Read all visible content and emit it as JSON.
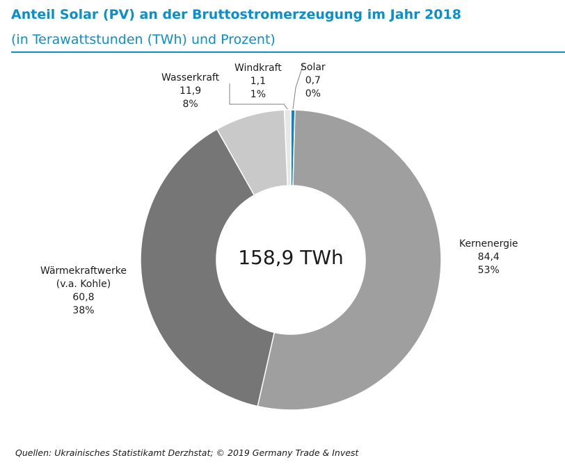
{
  "header": {
    "title": "Anteil Solar (PV) an der Bruttostromerzeugung im Jahr 2018",
    "subtitle": "(in Terawattstunden (TWh) und Prozent)"
  },
  "center": {
    "label": "158,9 TWh"
  },
  "source": "Quellen: Ukrainisches Statistikamt Derzhstat; © 2019  Germany Trade & Invest",
  "colors": {
    "accent": "#0a8fc9",
    "Solar": "#1382c4",
    "Kernenergie": "#9f9f9f",
    "Wärmekraftwerke": "#767676",
    "Wasserkraft": "#c9c9c9",
    "Windkraft": "#e7e7e7"
  },
  "chart_data": {
    "type": "pie",
    "donut": true,
    "total": 158.9,
    "total_label": "158,9 TWh",
    "slices": [
      {
        "name": "Solar",
        "lines": [
          "Solar"
        ],
        "value": 0.7,
        "value_label": "0,7",
        "percent_label": "0%",
        "color": "#1382c4"
      },
      {
        "name": "Kernenergie",
        "lines": [
          "Kernenergie"
        ],
        "value": 84.4,
        "value_label": "84,4",
        "percent_label": "53%",
        "color": "#9f9f9f"
      },
      {
        "name": "Wärmekraftwerke (v.a. Kohle)",
        "lines": [
          "Wärmekraftwerke",
          "(v.a. Kohle)"
        ],
        "value": 60.8,
        "value_label": "60,8",
        "percent_label": "38%",
        "color": "#767676"
      },
      {
        "name": "Wasserkraft",
        "lines": [
          "Wasserkraft"
        ],
        "value": 11.9,
        "value_label": "11,9",
        "percent_label": "8%",
        "color": "#c9c9c9"
      },
      {
        "name": "Windkraft",
        "lines": [
          "Windkraft"
        ],
        "value": 1.1,
        "value_label": "1,1",
        "percent_label": "1%",
        "color": "#e7e7e7"
      }
    ]
  }
}
